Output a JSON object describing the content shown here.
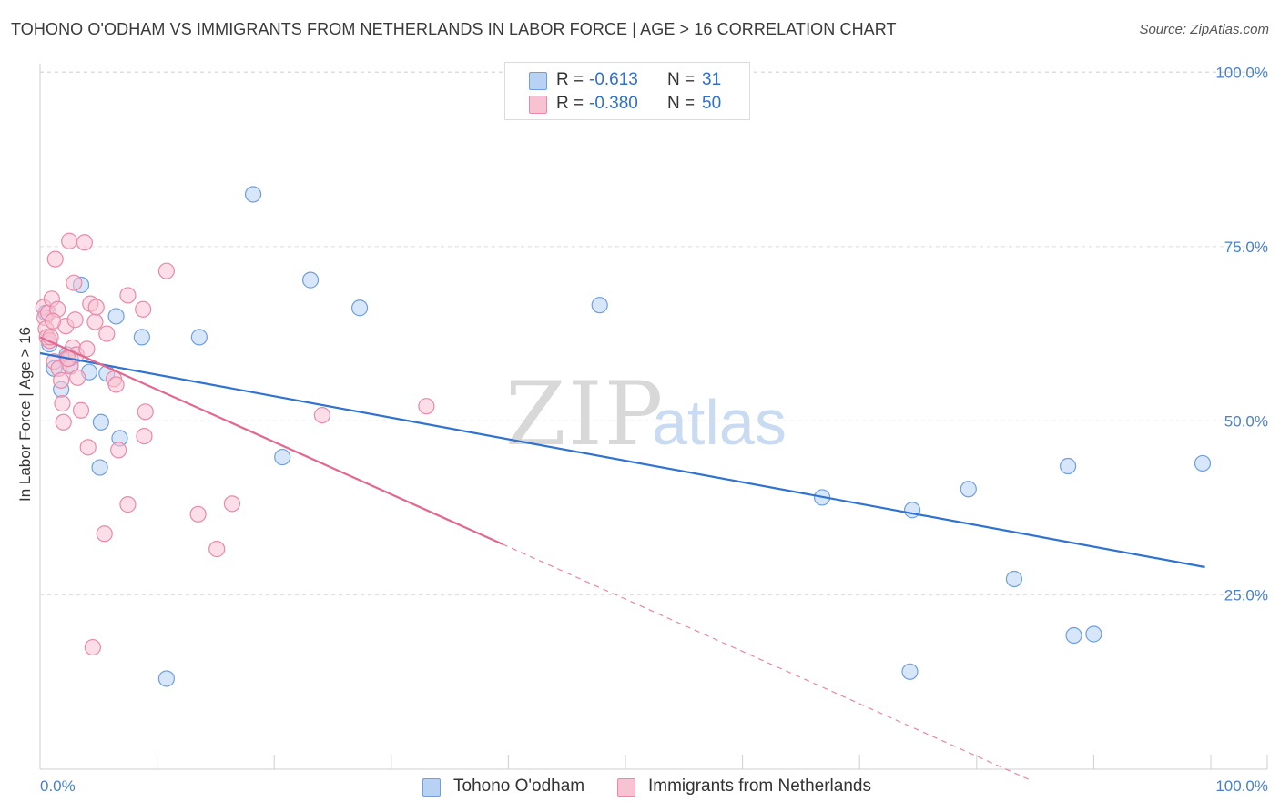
{
  "title": "TOHONO O'ODHAM VS IMMIGRANTS FROM NETHERLANDS IN LABOR FORCE | AGE > 16 CORRELATION CHART",
  "source": "Source: ZipAtlas.com",
  "watermark": {
    "zip": "ZIP",
    "atlas": "atlas"
  },
  "legend": {
    "rows": [
      {
        "r_label": "R =",
        "r_value": "-0.613",
        "n_label": "N =",
        "n_value": "31"
      },
      {
        "r_label": "R =",
        "r_value": "-0.380",
        "n_label": "N =",
        "n_value": "50"
      }
    ]
  },
  "bottom_legend": [
    "Tohono O'odham",
    "Immigrants from Netherlands"
  ],
  "colors": {
    "blue_fill": "#b8d2f4",
    "blue_stroke": "#6f9fe0",
    "blue_line": "#2f72d0",
    "pink_fill": "#f7c3d3",
    "pink_stroke": "#e98aa8",
    "pink_line": "#e2688f",
    "tick_text": "#4a7fd0"
  },
  "chart_data": {
    "type": "scatter",
    "title": "TOHONO O'ODHAM VS IMMIGRANTS FROM NETHERLANDS IN LABOR FORCE | AGE > 16 CORRELATION CHART",
    "xlabel": "",
    "ylabel": "In Labor Force | Age > 16",
    "xlim": [
      0,
      100
    ],
    "ylim": [
      0,
      101
    ],
    "x_tick_labels": [
      "0.0%",
      "100.0%"
    ],
    "y_ticks": [
      25,
      50,
      75,
      100
    ],
    "y_tick_labels": [
      "25.0%",
      "50.0%",
      "75.0%",
      "100.0%"
    ],
    "grid": true,
    "series": [
      {
        "name": "Tohono O'odham",
        "points": [
          [
            0.5,
            65.5
          ],
          [
            0.8,
            61
          ],
          [
            1.2,
            57.5
          ],
          [
            1.8,
            54.5
          ],
          [
            2.3,
            59.5
          ],
          [
            3.5,
            69.5
          ],
          [
            4.2,
            57
          ],
          [
            2.6,
            58
          ],
          [
            5.7,
            56.8
          ],
          [
            5.2,
            49.8
          ],
          [
            5.1,
            43.3
          ],
          [
            6.5,
            65
          ],
          [
            6.8,
            47.5
          ],
          [
            8.7,
            62
          ],
          [
            10.8,
            13
          ],
          [
            13.6,
            62
          ],
          [
            18.2,
            82.5
          ],
          [
            20.7,
            44.8
          ],
          [
            23.1,
            70.2
          ],
          [
            27.3,
            66.2
          ],
          [
            47.8,
            66.6
          ],
          [
            66.8,
            39
          ],
          [
            74.3,
            14
          ],
          [
            74.5,
            37.2
          ],
          [
            79.3,
            40.2
          ],
          [
            83.2,
            27.3
          ],
          [
            87.8,
            43.5
          ],
          [
            88.3,
            19.2
          ],
          [
            90.0,
            19.4
          ],
          [
            99.3,
            43.9
          ],
          [
            2.6,
            59
          ]
        ]
      },
      {
        "name": "Immigrants from Netherlands",
        "points": [
          [
            0.3,
            66.3
          ],
          [
            0.4,
            64.8
          ],
          [
            0.5,
            63.2
          ],
          [
            0.6,
            62
          ],
          [
            0.7,
            65.5
          ],
          [
            0.8,
            61.5
          ],
          [
            1.0,
            67.5
          ],
          [
            1.2,
            58.5
          ],
          [
            1.3,
            73.2
          ],
          [
            1.5,
            66
          ],
          [
            1.6,
            57.5
          ],
          [
            1.8,
            55.8
          ],
          [
            1.9,
            52.5
          ],
          [
            2.0,
            49.8
          ],
          [
            2.2,
            63.6
          ],
          [
            2.3,
            59
          ],
          [
            2.5,
            75.8
          ],
          [
            2.6,
            57.8
          ],
          [
            2.8,
            60.5
          ],
          [
            2.9,
            69.8
          ],
          [
            3.0,
            64.5
          ],
          [
            3.1,
            59.5
          ],
          [
            3.2,
            56.2
          ],
          [
            3.5,
            51.5
          ],
          [
            3.8,
            75.6
          ],
          [
            4.0,
            60.3
          ],
          [
            4.1,
            46.2
          ],
          [
            4.3,
            66.8
          ],
          [
            4.5,
            17.5
          ],
          [
            4.7,
            64.2
          ],
          [
            4.8,
            66.3
          ],
          [
            5.5,
            33.8
          ],
          [
            5.7,
            62.5
          ],
          [
            6.3,
            56
          ],
          [
            6.5,
            55.2
          ],
          [
            6.7,
            45.8
          ],
          [
            7.5,
            68
          ],
          [
            7.5,
            38
          ],
          [
            8.8,
            66
          ],
          [
            8.9,
            47.8
          ],
          [
            9.0,
            51.3
          ],
          [
            10.8,
            71.5
          ],
          [
            13.5,
            36.6
          ],
          [
            15.1,
            31.6
          ],
          [
            16.4,
            38.1
          ],
          [
            24.1,
            50.8
          ],
          [
            33.0,
            52.1
          ],
          [
            0.9,
            62
          ],
          [
            1.1,
            64.3
          ],
          [
            2.4,
            58.9
          ]
        ]
      }
    ],
    "trendlines": [
      {
        "series": "Tohono O'odham",
        "x": [
          0,
          99.5
        ],
        "y": [
          59.7,
          29
        ],
        "style": "solid"
      },
      {
        "series": "Immigrants from Netherlands",
        "solid_x": [
          0,
          39.5
        ],
        "solid_y": [
          62,
          32.3
        ],
        "dashed_x": [
          39.5,
          84.5
        ],
        "dashed_y": [
          32.3,
          -1.5
        ]
      }
    ]
  }
}
